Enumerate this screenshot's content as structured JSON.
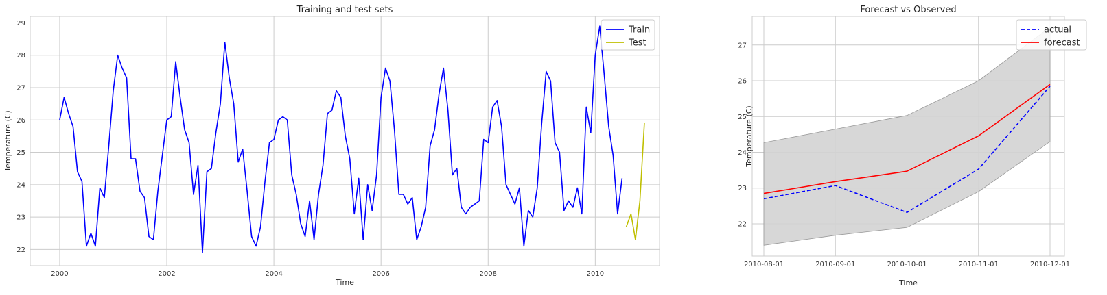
{
  "chart_data": [
    {
      "type": "line",
      "title": "Training and test sets",
      "xlabel": "Time",
      "ylabel": "Temperature (C)",
      "xlim": [
        1999.45,
        2011.2
      ],
      "ylim": [
        21.5,
        29.2
      ],
      "xticks": [
        2000,
        2002,
        2004,
        2006,
        2008,
        2010
      ],
      "xtick_labels": [
        "2000",
        "2002",
        "2004",
        "2006",
        "2008",
        "2010"
      ],
      "yticks": [
        22,
        23,
        24,
        25,
        26,
        27,
        28,
        29
      ],
      "ytick_labels": [
        "22",
        "23",
        "24",
        "25",
        "26",
        "27",
        "28",
        "29"
      ],
      "grid": true,
      "legend_position": "top-right",
      "series": [
        {
          "name": "Train",
          "color": "#0000ff",
          "x_start": 2000.0,
          "x_step_months": 1,
          "values": [
            26.0,
            26.7,
            26.2,
            25.8,
            24.4,
            24.1,
            22.1,
            22.5,
            22.1,
            23.9,
            23.6,
            25.2,
            26.9,
            28.0,
            27.6,
            27.3,
            24.8,
            24.8,
            23.8,
            23.6,
            22.4,
            22.3,
            23.8,
            24.9,
            26.0,
            26.1,
            27.8,
            26.7,
            25.7,
            25.3,
            23.7,
            24.6,
            21.9,
            24.4,
            24.5,
            25.6,
            26.5,
            28.4,
            27.3,
            26.5,
            24.7,
            25.1,
            23.8,
            22.4,
            22.1,
            22.7,
            24.1,
            25.3,
            25.4,
            26.0,
            26.1,
            26.0,
            24.3,
            23.7,
            22.8,
            22.4,
            23.5,
            22.3,
            23.7,
            24.6,
            26.2,
            26.3,
            26.9,
            26.7,
            25.5,
            24.8,
            23.1,
            24.2,
            22.3,
            24.0,
            23.2,
            24.3,
            26.7,
            27.6,
            27.2,
            25.7,
            23.7,
            23.7,
            23.4,
            23.6,
            22.3,
            22.7,
            23.3,
            25.2,
            25.7,
            26.8,
            27.6,
            26.3,
            24.3,
            24.5,
            23.3,
            23.1,
            23.3,
            23.4,
            23.5,
            25.4,
            25.3,
            26.4,
            26.6,
            25.8,
            24.0,
            23.7,
            23.4,
            23.9,
            22.1,
            23.2,
            23.0,
            23.9,
            25.9,
            27.5,
            27.2,
            25.3,
            25.0,
            23.2,
            23.5,
            23.3,
            23.9,
            23.1,
            26.4,
            25.6,
            28.0,
            28.9,
            27.4,
            25.8,
            24.9,
            23.1,
            24.2
          ]
        },
        {
          "name": "Test",
          "color": "#bfbf00",
          "x": [
            2010.58,
            2010.667,
            2010.75,
            2010.833,
            2010.917
          ],
          "values": [
            22.7,
            23.1,
            22.3,
            23.5,
            25.9
          ]
        }
      ]
    },
    {
      "type": "line",
      "title": "Forecast vs Observed",
      "xlabel": "Time",
      "ylabel": "Temperature (C)",
      "x": [
        "2010-08-01",
        "2010-09-01",
        "2010-10-01",
        "2010-11-01",
        "2010-12-01"
      ],
      "ylim": [
        21.1,
        27.8
      ],
      "yticks": [
        22,
        23,
        24,
        25,
        26,
        27
      ],
      "ytick_labels": [
        "22",
        "23",
        "24",
        "25",
        "26",
        "27"
      ],
      "grid": true,
      "legend_position": "top-right",
      "series": [
        {
          "name": "actual",
          "color": "#0000ff",
          "style": "dashed",
          "values": [
            22.7,
            23.07,
            22.32,
            23.53,
            25.85
          ]
        },
        {
          "name": "forecast",
          "color": "#ff0000",
          "style": "solid",
          "values": [
            22.85,
            23.18,
            23.47,
            24.46,
            25.9
          ]
        }
      ],
      "confidence_band": {
        "lower": [
          21.4,
          21.68,
          21.9,
          22.9,
          24.3
        ],
        "upper": [
          24.27,
          24.65,
          25.03,
          26.0,
          27.5
        ],
        "color": "#d3d3d3"
      }
    }
  ]
}
